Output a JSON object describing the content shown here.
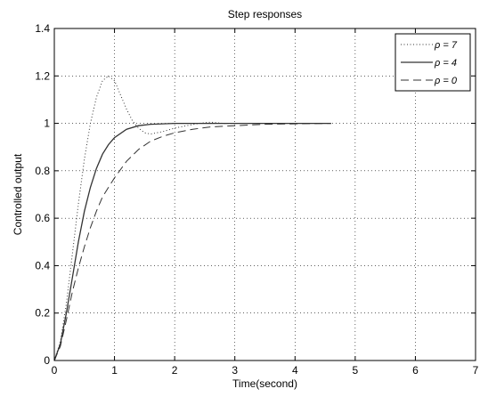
{
  "chart_data": {
    "type": "line",
    "title": "Step responses",
    "xlabel": "Time(second)",
    "ylabel": "Controlled output",
    "xlim": [
      0,
      7
    ],
    "ylim": [
      0,
      1.4
    ],
    "xticks": [
      "0",
      "1",
      "2",
      "3",
      "4",
      "5",
      "6",
      "7"
    ],
    "yticks": [
      "0",
      "0.2",
      "0.4",
      "0.6",
      "0.8",
      "1",
      "1.2",
      "1.4"
    ],
    "grid": true,
    "legend_position": "top-right",
    "series": [
      {
        "name": "ρ = 7",
        "style": "dotted",
        "color": "#333333",
        "x": [
          0,
          0.1,
          0.2,
          0.3,
          0.4,
          0.5,
          0.6,
          0.7,
          0.8,
          0.9,
          1.0,
          1.1,
          1.2,
          1.3,
          1.4,
          1.5,
          1.6,
          1.7,
          1.8,
          2.0,
          2.2,
          2.4,
          2.6,
          2.8,
          3.0
        ],
        "y": [
          0,
          0.08,
          0.24,
          0.45,
          0.66,
          0.85,
          1.0,
          1.11,
          1.18,
          1.2,
          1.18,
          1.12,
          1.06,
          1.01,
          0.98,
          0.96,
          0.955,
          0.96,
          0.965,
          0.98,
          0.99,
          1.0,
          1.005,
          1.0,
          1.0
        ]
      },
      {
        "name": "ρ = 4",
        "style": "solid",
        "color": "#333333",
        "x": [
          0,
          0.1,
          0.2,
          0.3,
          0.4,
          0.5,
          0.6,
          0.7,
          0.8,
          0.9,
          1.0,
          1.2,
          1.4,
          1.6,
          1.8,
          2.0,
          2.2,
          2.5,
          3.0,
          3.5,
          4.0,
          4.6
        ],
        "y": [
          0,
          0.07,
          0.2,
          0.35,
          0.5,
          0.63,
          0.73,
          0.81,
          0.87,
          0.91,
          0.94,
          0.975,
          0.99,
          0.996,
          0.998,
          1.0,
          1.0,
          1.0,
          1.0,
          1.0,
          1.0,
          1.0
        ]
      },
      {
        "name": "ρ = 0",
        "style": "dashed",
        "color": "#333333",
        "x": [
          0,
          0.1,
          0.2,
          0.3,
          0.4,
          0.5,
          0.6,
          0.7,
          0.8,
          0.9,
          1.0,
          1.2,
          1.4,
          1.6,
          1.8,
          2.0,
          2.3,
          2.6,
          3.0,
          3.5,
          4.0,
          4.6
        ],
        "y": [
          0,
          0.06,
          0.17,
          0.29,
          0.39,
          0.48,
          0.56,
          0.63,
          0.69,
          0.73,
          0.77,
          0.84,
          0.89,
          0.925,
          0.945,
          0.96,
          0.975,
          0.985,
          0.99,
          0.996,
          0.998,
          1.0
        ]
      }
    ]
  }
}
